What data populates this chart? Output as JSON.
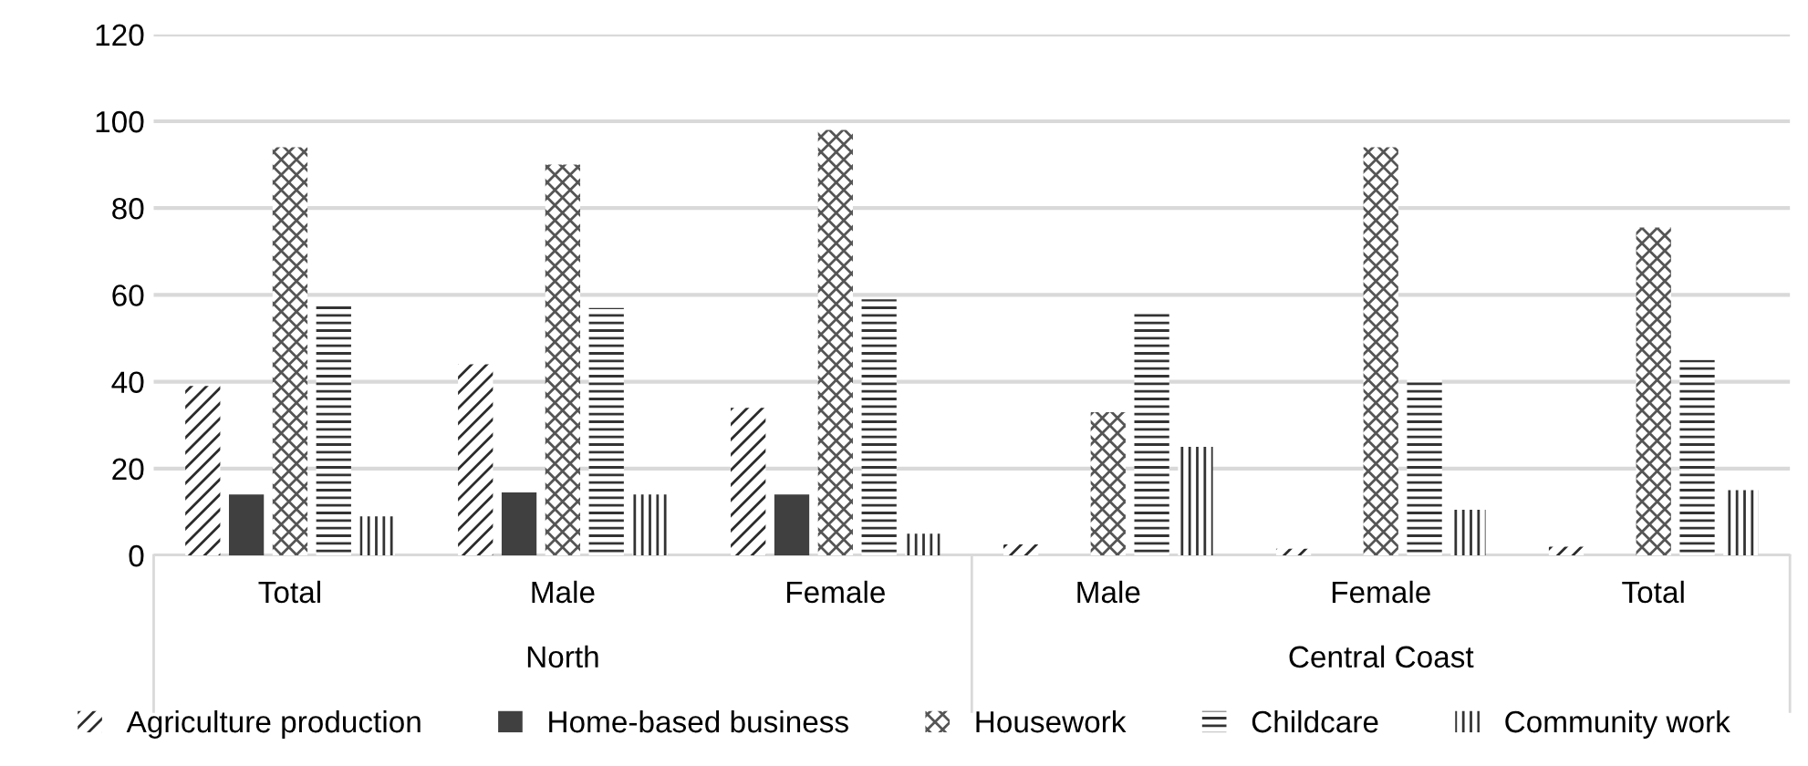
{
  "chart_data": {
    "type": "bar",
    "categories": [
      "Total",
      "Male",
      "Female",
      "Male",
      "Female",
      "Total"
    ],
    "annotations": [
      "North",
      "Central Coast"
    ],
    "series": [
      {
        "name": "Agriculture production",
        "color": "#2b2b2b",
        "values": [
          39,
          44,
          34,
          2.5,
          1.5,
          2
        ]
      },
      {
        "name": "Home-based business",
        "color": "#404040",
        "values": [
          14,
          14.5,
          14,
          null,
          null,
          null
        ]
      },
      {
        "name": "Housework",
        "color": "#555555",
        "values": [
          94,
          90,
          98,
          33,
          94,
          75.5
        ]
      },
      {
        "name": "Childcare",
        "color": "#333333",
        "values": [
          58,
          57,
          59,
          56.5,
          40.5,
          45
        ]
      },
      {
        "name": "Community work",
        "color": "#333333",
        "values": [
          9,
          14,
          5,
          25,
          10.5,
          15
        ]
      }
    ],
    "ylim": [
      0,
      120
    ],
    "yticks": [
      0,
      20,
      40,
      60,
      80,
      100,
      120
    ],
    "grid": "y",
    "legend": "bottom"
  }
}
